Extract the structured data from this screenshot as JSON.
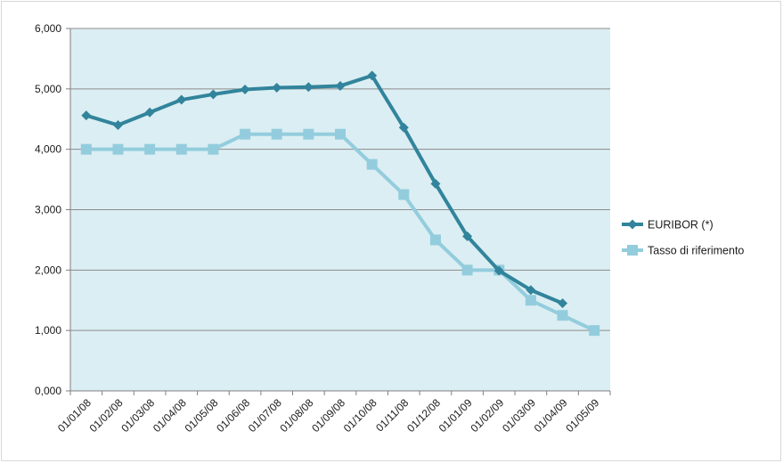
{
  "chart_data": {
    "type": "line",
    "categories": [
      "01/01/08",
      "01/02/08",
      "01/03/08",
      "01/04/08",
      "01/05/08",
      "01/06/08",
      "01/07/08",
      "01/08/08",
      "01/09/08",
      "01/10/08",
      "01/11/08",
      "01/12/08",
      "01/01/09",
      "01/02/09",
      "01/03/09",
      "01/04/09",
      "01/05/09"
    ],
    "yticks": [
      "0,000",
      "1,000",
      "2,000",
      "3,000",
      "4,000",
      "5,000",
      "6,000"
    ],
    "ylim": [
      0,
      6
    ],
    "grid": true,
    "legend_position": "right",
    "series": [
      {
        "name": "EURIBOR (*)",
        "marker": "diamond",
        "color": "#31849b",
        "values": [
          4.56,
          4.4,
          4.61,
          4.82,
          4.91,
          4.99,
          5.02,
          5.03,
          5.05,
          5.22,
          4.36,
          3.43,
          2.56,
          1.99,
          1.67,
          1.45,
          null
        ]
      },
      {
        "name": "Tasso di riferimento",
        "marker": "square",
        "color": "#93cddd",
        "values": [
          4.0,
          4.0,
          4.0,
          4.0,
          4.0,
          4.25,
          4.25,
          4.25,
          4.25,
          3.75,
          3.25,
          2.5,
          2.0,
          2.0,
          1.5,
          1.25,
          1.0
        ]
      }
    ],
    "plot_background": "#dbeef3",
    "gridline_color": "#8c8c8c"
  }
}
